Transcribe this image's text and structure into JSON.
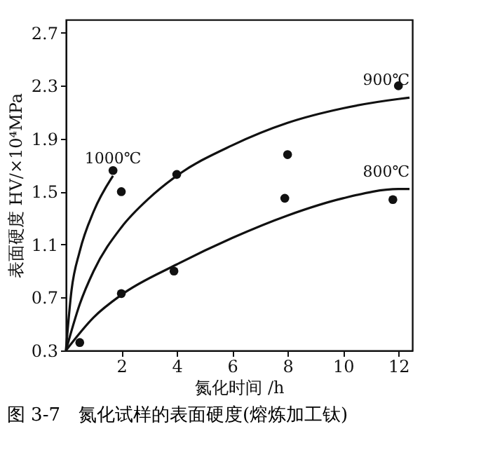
{
  "chart_data": {
    "type": "line",
    "title": "图 3-7　氮化试样的表面硬度(熔炼加工钛)",
    "xlabel": "氮化时间 /h",
    "ylabel": "表面硬度 HV/×10⁴MPa",
    "xlim": [
      0,
      12.5
    ],
    "xticks": [
      2,
      4,
      6,
      8,
      10,
      12
    ],
    "ylim": [
      0.3,
      2.8
    ],
    "yticks": [
      0.3,
      0.7,
      1.1,
      1.5,
      1.9,
      2.3,
      2.7
    ],
    "grid": false,
    "series": [
      {
        "name": "1000℃",
        "color": "#111111",
        "x": [
          0,
          0.2,
          0.5,
          1,
          1.7
        ],
        "values": [
          0.3,
          0.75,
          1.05,
          1.35,
          1.62
        ]
      },
      {
        "name": "900℃",
        "color": "#111111",
        "x": [
          0,
          0.5,
          1,
          2,
          3,
          4,
          6,
          8,
          10,
          12,
          12.4
        ],
        "values": [
          0.3,
          0.65,
          0.9,
          1.23,
          1.45,
          1.62,
          1.85,
          2.02,
          2.13,
          2.2,
          2.21
        ]
      },
      {
        "name": "800℃",
        "color": "#111111",
        "x": [
          0,
          1,
          2,
          4,
          6,
          8,
          10,
          12,
          12.4
        ],
        "values": [
          0.3,
          0.55,
          0.72,
          0.95,
          1.15,
          1.32,
          1.45,
          1.52,
          1.52
        ]
      },
      {
        "type": "scatter",
        "marker": "circle",
        "color": "#111111",
        "x": [
          1.7
        ],
        "values": [
          1.66
        ]
      },
      {
        "type": "scatter",
        "marker": "circle",
        "color": "#111111",
        "x": [
          2,
          4,
          8,
          12
        ],
        "values": [
          1.5,
          1.63,
          1.78,
          2.3
        ]
      },
      {
        "type": "scatter",
        "marker": "circle",
        "color": "#111111",
        "x": [
          0.5,
          2,
          3.9,
          7.9,
          11.8
        ],
        "values": [
          0.36,
          0.73,
          0.9,
          1.45,
          1.44
        ]
      }
    ]
  }
}
